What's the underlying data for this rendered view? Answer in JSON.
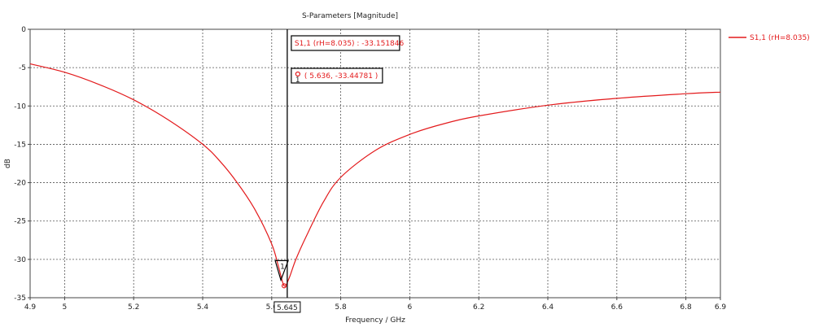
{
  "chart_data": {
    "type": "line",
    "title": "S-Parameters [Magnitude]",
    "xlabel": "Frequency / GHz",
    "ylabel": "dB",
    "xlim": [
      4.9,
      6.9
    ],
    "ylim": [
      -35,
      0
    ],
    "x_ticks": [
      "4.9",
      "5",
      "5.2",
      "5.4",
      "5.6",
      "5.8",
      "6",
      "6.2",
      "6.4",
      "6.6",
      "6.8",
      "6.9"
    ],
    "y_ticks": [
      "0",
      "-5",
      "-10",
      "-15",
      "-20",
      "-25",
      "-30",
      "-35"
    ],
    "grid": true,
    "legend_position": "top-right",
    "series": [
      {
        "name": "S1,1 (rH=8.035)",
        "color": "#e31a1c",
        "x": [
          4.9,
          5.0,
          5.1,
          5.2,
          5.3,
          5.4,
          5.45,
          5.5,
          5.55,
          5.6,
          5.62,
          5.636,
          5.65,
          5.67,
          5.7,
          5.75,
          5.8,
          5.9,
          6.0,
          6.1,
          6.2,
          6.4,
          6.6,
          6.8,
          6.9
        ],
        "y": [
          -4.5,
          -5.6,
          -7.2,
          -9.2,
          -11.8,
          -15.0,
          -17.2,
          -20.0,
          -23.4,
          -28.0,
          -31.0,
          -33.45,
          -32.5,
          -30.0,
          -27.0,
          -22.5,
          -19.3,
          -15.8,
          -13.7,
          -12.3,
          -11.3,
          -9.9,
          -9.0,
          -8.4,
          -8.2
        ]
      }
    ],
    "markers": [
      {
        "id": "1",
        "x": 5.636,
        "y": -33.44781,
        "label": "( 5.636, -33.44781 )"
      }
    ],
    "cursor": {
      "x": 5.645,
      "label": "5.645",
      "readout": "S1,1 (rH=8.035) : -33.151846"
    }
  }
}
